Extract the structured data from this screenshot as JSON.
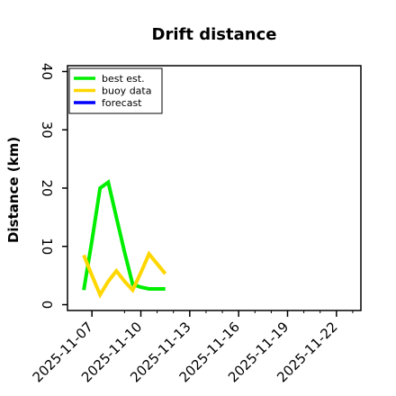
{
  "chart_data": {
    "type": "line",
    "title": "Drift distance",
    "xlabel": "",
    "ylabel": "Distance (km)",
    "xlim": [
      "2025-11-05T12:00",
      "2025-11-23T12:00"
    ],
    "ylim": [
      -1,
      41
    ],
    "yticks": [
      0,
      10,
      20,
      30,
      40
    ],
    "xticks": [
      "2025-11-07",
      "2025-11-10",
      "2025-11-13",
      "2025-11-16",
      "2025-11-19",
      "2025-11-22"
    ],
    "minor_xticks": [
      "2025-11-09",
      "2025-11-11",
      "2025-11-12",
      "2025-11-14",
      "2025-11-15",
      "2025-11-17",
      "2025-11-18",
      "2025-11-20",
      "2025-11-21",
      "2025-11-23"
    ],
    "highlight_tick": "2025-11-13",
    "highlight_color": "#2e8b2e",
    "legend_position": "top-left",
    "series": [
      {
        "name": "best est.",
        "color": "#00ee00",
        "x": [
          "2025-11-06T12:00",
          "2025-11-07T00:00",
          "2025-11-07T12:00",
          "2025-11-08T00:00",
          "2025-11-08T12:00",
          "2025-11-09T00:00",
          "2025-11-09T12:00",
          "2025-11-10T00:00",
          "2025-11-10T12:00",
          "2025-11-11T00:00",
          "2025-11-11T12:00"
        ],
        "values": [
          2.5,
          11,
          20,
          21,
          15,
          9,
          3.5,
          3,
          2.7,
          2.7,
          2.7
        ]
      },
      {
        "name": "buoy data",
        "color": "#ffd700",
        "x": [
          "2025-11-06T12:00",
          "2025-11-07T00:00",
          "2025-11-07T12:00",
          "2025-11-08T00:00",
          "2025-11-08T12:00",
          "2025-11-09T00:00",
          "2025-11-09T12:00",
          "2025-11-10T00:00",
          "2025-11-10T12:00",
          "2025-11-11T00:00",
          "2025-11-11T12:00"
        ],
        "values": [
          8.5,
          5,
          1.7,
          4,
          5.8,
          4,
          2.5,
          5.5,
          8.7,
          7,
          5.3
        ]
      },
      {
        "name": "forecast",
        "color": "#0000ff",
        "x": [],
        "values": []
      }
    ]
  }
}
